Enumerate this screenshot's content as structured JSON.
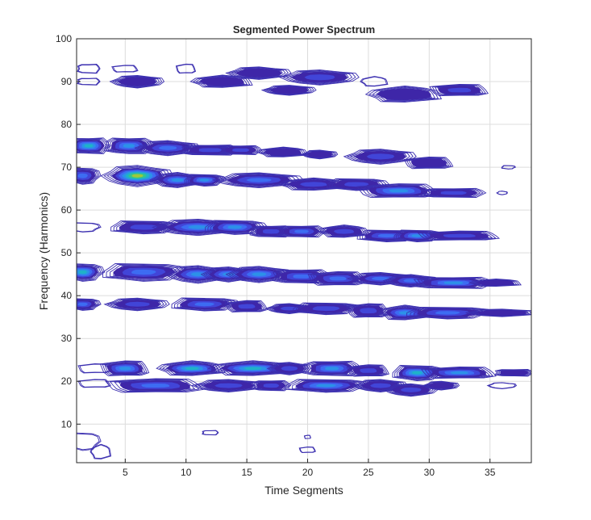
{
  "chart_data": {
    "type": "heatmap",
    "subtype": "contour",
    "title": "Segmented Power Spectrum",
    "xlabel": "Time Segments",
    "ylabel": "Frequency (Harmonics)",
    "xlim": [
      1,
      38.4
    ],
    "ylim": [
      1,
      100
    ],
    "xticks": [
      5,
      10,
      15,
      20,
      25,
      30,
      35
    ],
    "yticks": [
      10,
      20,
      30,
      40,
      50,
      60,
      70,
      80,
      90,
      100
    ],
    "grid": true,
    "colormap": [
      "#3e26a8",
      "#4145d8",
      "#3d6cf2",
      "#2c91e8",
      "#1fb2c8",
      "#36c48a",
      "#9cc93d",
      "#f5cf2a"
    ],
    "peaks": [
      {
        "x": 2,
        "y": 93,
        "wx": 0.7,
        "wy": 0.8,
        "p": 0.08
      },
      {
        "x": 5,
        "y": 93,
        "wx": 0.8,
        "wy": 0.6,
        "p": 0.08
      },
      {
        "x": 10,
        "y": 93,
        "wx": 0.6,
        "wy": 0.8,
        "p": 0.08
      },
      {
        "x": 16,
        "y": 92,
        "wx": 1.8,
        "wy": 1,
        "p": 0.15
      },
      {
        "x": 21,
        "y": 91,
        "wx": 2.2,
        "wy": 1.2,
        "p": 0.2
      },
      {
        "x": 25.5,
        "y": 90,
        "wx": 0.8,
        "wy": 0.8,
        "p": 0.08
      },
      {
        "x": 28,
        "y": 87,
        "wx": 2.2,
        "wy": 1.3,
        "p": 0.12
      },
      {
        "x": 32.5,
        "y": 88,
        "wx": 1.8,
        "wy": 1,
        "p": 0.2
      },
      {
        "x": 2,
        "y": 90,
        "wx": 0.7,
        "wy": 0.6,
        "p": 0.08
      },
      {
        "x": 6,
        "y": 90,
        "wx": 1.5,
        "wy": 1,
        "p": 0.15
      },
      {
        "x": 13,
        "y": 90,
        "wx": 1.8,
        "wy": 1,
        "p": 0.12
      },
      {
        "x": 18.5,
        "y": 88,
        "wx": 1.5,
        "wy": 0.8,
        "p": 0.15
      },
      {
        "x": 2,
        "y": 75,
        "wx": 1.3,
        "wy": 1.4,
        "p": 0.6
      },
      {
        "x": 5.3,
        "y": 75,
        "wx": 1.5,
        "wy": 1.4,
        "p": 0.55
      },
      {
        "x": 8.5,
        "y": 74.5,
        "wx": 1.8,
        "wy": 1.2,
        "p": 0.4
      },
      {
        "x": 12,
        "y": 74,
        "wx": 1.8,
        "wy": 0.9,
        "p": 0.3
      },
      {
        "x": 14.5,
        "y": 74,
        "wx": 1.3,
        "wy": 0.8,
        "p": 0.25
      },
      {
        "x": 18,
        "y": 73.5,
        "wx": 1.5,
        "wy": 0.8,
        "p": 0.15
      },
      {
        "x": 21,
        "y": 73,
        "wx": 1,
        "wy": 0.7,
        "p": 0.1
      },
      {
        "x": 26,
        "y": 72.5,
        "wx": 2,
        "wy": 1.2,
        "p": 0.2
      },
      {
        "x": 30,
        "y": 71,
        "wx": 1.5,
        "wy": 1,
        "p": 0.15
      },
      {
        "x": 36.5,
        "y": 70,
        "wx": 0.4,
        "wy": 0.3,
        "p": 0.05
      },
      {
        "x": 1.5,
        "y": 68,
        "wx": 1,
        "wy": 1.4,
        "p": 0.4
      },
      {
        "x": 6,
        "y": 68,
        "wx": 2,
        "wy": 1.7,
        "p": 0.85
      },
      {
        "x": 9.3,
        "y": 67,
        "wx": 1.5,
        "wy": 1.2,
        "p": 0.5
      },
      {
        "x": 11.5,
        "y": 67,
        "wx": 1.2,
        "wy": 1,
        "p": 0.45
      },
      {
        "x": 16,
        "y": 67,
        "wx": 2.5,
        "wy": 1.2,
        "p": 0.4
      },
      {
        "x": 20.5,
        "y": 66,
        "wx": 2,
        "wy": 1,
        "p": 0.3
      },
      {
        "x": 24,
        "y": 66,
        "wx": 1.8,
        "wy": 1,
        "p": 0.3
      },
      {
        "x": 27.5,
        "y": 64.5,
        "wx": 2.5,
        "wy": 1.2,
        "p": 0.5
      },
      {
        "x": 32,
        "y": 64,
        "wx": 2,
        "wy": 0.8,
        "p": 0.25
      },
      {
        "x": 36,
        "y": 64,
        "wx": 0.3,
        "wy": 0.3,
        "p": 0.05
      },
      {
        "x": 1.5,
        "y": 56,
        "wx": 1,
        "wy": 0.8,
        "p": 0.08
      },
      {
        "x": 6.5,
        "y": 56,
        "wx": 2,
        "wy": 1.1,
        "p": 0.3
      },
      {
        "x": 11,
        "y": 56,
        "wx": 2.5,
        "wy": 1.3,
        "p": 0.55
      },
      {
        "x": 14,
        "y": 56,
        "wx": 1.8,
        "wy": 1.2,
        "p": 0.5
      },
      {
        "x": 17,
        "y": 55,
        "wx": 1.3,
        "wy": 1,
        "p": 0.3
      },
      {
        "x": 19.5,
        "y": 55,
        "wx": 1.5,
        "wy": 1,
        "p": 0.35
      },
      {
        "x": 23,
        "y": 55,
        "wx": 1.5,
        "wy": 1,
        "p": 0.3
      },
      {
        "x": 26.5,
        "y": 54,
        "wx": 1.8,
        "wy": 1,
        "p": 0.4
      },
      {
        "x": 29,
        "y": 54,
        "wx": 1.4,
        "wy": 1,
        "p": 0.5
      },
      {
        "x": 32.5,
        "y": 54,
        "wx": 2.5,
        "wy": 0.8,
        "p": 0.2
      },
      {
        "x": 1.5,
        "y": 45.5,
        "wx": 1.2,
        "wy": 1.5,
        "p": 0.65
      },
      {
        "x": 6.5,
        "y": 45.5,
        "wx": 2.5,
        "wy": 1.5,
        "p": 0.4
      },
      {
        "x": 11,
        "y": 45,
        "wx": 1.8,
        "wy": 1.4,
        "p": 0.5
      },
      {
        "x": 13.5,
        "y": 45,
        "wx": 1.5,
        "wy": 1.2,
        "p": 0.5
      },
      {
        "x": 16,
        "y": 45,
        "wx": 1.8,
        "wy": 1.3,
        "p": 0.45
      },
      {
        "x": 19.5,
        "y": 44.5,
        "wx": 1.8,
        "wy": 1.2,
        "p": 0.35
      },
      {
        "x": 22.5,
        "y": 44,
        "wx": 1.8,
        "wy": 1.2,
        "p": 0.4
      },
      {
        "x": 26,
        "y": 44,
        "wx": 1.8,
        "wy": 1,
        "p": 0.35
      },
      {
        "x": 28.5,
        "y": 43.5,
        "wx": 1.5,
        "wy": 1,
        "p": 0.4
      },
      {
        "x": 32,
        "y": 43,
        "wx": 2.5,
        "wy": 1,
        "p": 0.45
      },
      {
        "x": 35.5,
        "y": 43,
        "wx": 1.5,
        "wy": 0.6,
        "p": 0.12
      },
      {
        "x": 1.5,
        "y": 38,
        "wx": 1,
        "wy": 1,
        "p": 0.4
      },
      {
        "x": 6,
        "y": 38,
        "wx": 1.8,
        "wy": 1,
        "p": 0.3
      },
      {
        "x": 11.5,
        "y": 38,
        "wx": 2,
        "wy": 1.1,
        "p": 0.4
      },
      {
        "x": 15,
        "y": 37.5,
        "wx": 1.3,
        "wy": 1,
        "p": 0.2
      },
      {
        "x": 18.5,
        "y": 37,
        "wx": 1.3,
        "wy": 0.8,
        "p": 0.2
      },
      {
        "x": 21.5,
        "y": 37,
        "wx": 2,
        "wy": 1,
        "p": 0.3
      },
      {
        "x": 25,
        "y": 36.5,
        "wx": 1.3,
        "wy": 1.2,
        "p": 0.25
      },
      {
        "x": 28,
        "y": 36,
        "wx": 1.5,
        "wy": 1.2,
        "p": 0.5
      },
      {
        "x": 31.5,
        "y": 36,
        "wx": 2.5,
        "wy": 1,
        "p": 0.35
      },
      {
        "x": 36,
        "y": 36,
        "wx": 2,
        "wy": 0.6,
        "p": 0.12
      },
      {
        "x": 2.5,
        "y": 23,
        "wx": 1,
        "wy": 0.8,
        "p": 0.08
      },
      {
        "x": 5,
        "y": 23,
        "wx": 1.5,
        "wy": 1.3,
        "p": 0.5
      },
      {
        "x": 10.5,
        "y": 23,
        "wx": 2,
        "wy": 1.2,
        "p": 0.6
      },
      {
        "x": 15.5,
        "y": 23,
        "wx": 2.5,
        "wy": 1.2,
        "p": 0.6
      },
      {
        "x": 18.5,
        "y": 23,
        "wx": 1.2,
        "wy": 1,
        "p": 0.3
      },
      {
        "x": 22,
        "y": 23,
        "wx": 1.8,
        "wy": 1.3,
        "p": 0.5
      },
      {
        "x": 25,
        "y": 22.5,
        "wx": 1.3,
        "wy": 1,
        "p": 0.3
      },
      {
        "x": 29,
        "y": 22,
        "wx": 1.5,
        "wy": 1.3,
        "p": 0.6
      },
      {
        "x": 32.5,
        "y": 22,
        "wx": 2.3,
        "wy": 1,
        "p": 0.5
      },
      {
        "x": 37,
        "y": 22,
        "wx": 1.2,
        "wy": 0.6,
        "p": 0.1
      },
      {
        "x": 2.5,
        "y": 19.5,
        "wx": 1,
        "wy": 0.7,
        "p": 0.08
      },
      {
        "x": 7.5,
        "y": 19,
        "wx": 3,
        "wy": 1.2,
        "p": 0.35
      },
      {
        "x": 13.5,
        "y": 19,
        "wx": 2,
        "wy": 1,
        "p": 0.3
      },
      {
        "x": 17,
        "y": 19,
        "wx": 1.2,
        "wy": 0.9,
        "p": 0.25
      },
      {
        "x": 21.5,
        "y": 19,
        "wx": 2.5,
        "wy": 1.1,
        "p": 0.45
      },
      {
        "x": 26,
        "y": 19,
        "wx": 1.5,
        "wy": 1,
        "p": 0.3
      },
      {
        "x": 28.5,
        "y": 18,
        "wx": 1.5,
        "wy": 1,
        "p": 0.25
      },
      {
        "x": 31,
        "y": 19,
        "wx": 1,
        "wy": 0.7,
        "p": 0.12
      },
      {
        "x": 36,
        "y": 19,
        "wx": 0.8,
        "wy": 0.5,
        "p": 0.08
      },
      {
        "x": 1.5,
        "y": 6,
        "wx": 1,
        "wy": 1.5,
        "p": 0.05
      },
      {
        "x": 3,
        "y": 3.5,
        "wx": 0.6,
        "wy": 1.2,
        "p": 0.05
      },
      {
        "x": 12,
        "y": 8,
        "wx": 0.5,
        "wy": 0.4,
        "p": 0.05
      },
      {
        "x": 20,
        "y": 7,
        "wx": 0.2,
        "wy": 0.3,
        "p": 0.04
      },
      {
        "x": 20,
        "y": 4,
        "wx": 0.5,
        "wy": 0.5,
        "p": 0.05
      }
    ]
  }
}
